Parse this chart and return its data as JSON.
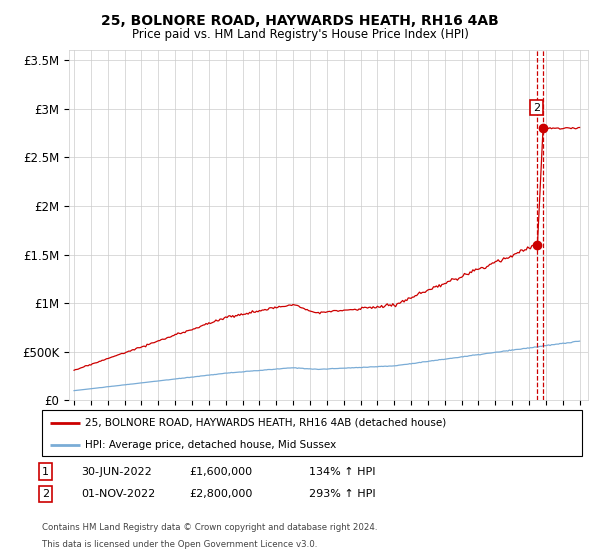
{
  "title": "25, BOLNORE ROAD, HAYWARDS HEATH, RH16 4AB",
  "subtitle": "Price paid vs. HM Land Registry's House Price Index (HPI)",
  "legend_line1": "25, BOLNORE ROAD, HAYWARDS HEATH, RH16 4AB (detached house)",
  "legend_line2": "HPI: Average price, detached house, Mid Sussex",
  "sale1_date": "30-JUN-2022",
  "sale1_price": 1600000,
  "sale1_pct": "134%",
  "sale2_date": "01-NOV-2022",
  "sale2_price": 2800000,
  "sale2_pct": "293%",
  "footnote1": "Contains HM Land Registry data © Crown copyright and database right 2024.",
  "footnote2": "This data is licensed under the Open Government Licence v3.0.",
  "hpi_color": "#7aacd6",
  "price_color": "#cc0000",
  "dashed_color": "#cc0000",
  "sale1_x": 2022.5,
  "sale2_x": 2022.83,
  "ylim": [
    0,
    3600000
  ],
  "xlim_left": 1994.7,
  "xlim_right": 2025.5,
  "xticks": [
    1995,
    1996,
    1997,
    1998,
    1999,
    2000,
    2001,
    2002,
    2003,
    2004,
    2005,
    2006,
    2007,
    2008,
    2009,
    2010,
    2011,
    2012,
    2013,
    2014,
    2015,
    2016,
    2017,
    2018,
    2019,
    2020,
    2021,
    2022,
    2023,
    2024,
    2025
  ],
  "yticks": [
    0,
    500000,
    1000000,
    1500000,
    2000000,
    2500000,
    3000000,
    3500000
  ],
  "ytick_labels": [
    "£0",
    "£500K",
    "£1M",
    "£1.5M",
    "£2M",
    "£2.5M",
    "£3M",
    "£3.5M"
  ]
}
